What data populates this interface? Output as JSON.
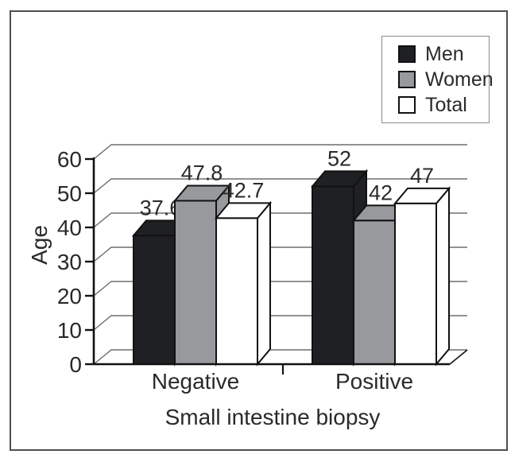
{
  "chart_data": {
    "type": "bar",
    "style": "3d-grouped",
    "title": "",
    "categories": [
      "Negative",
      "Positive"
    ],
    "series": [
      {
        "name": "Men",
        "color": "#1f2023",
        "values": [
          37.6,
          52
        ]
      },
      {
        "name": "Women",
        "color": "#97999c",
        "values": [
          47.8,
          42
        ]
      },
      {
        "name": "Total",
        "color": "#ffffff",
        "values": [
          42.7,
          47
        ]
      }
    ],
    "data_labels": [
      "37.6",
      "47.8",
      "42.7",
      "52",
      "42",
      "47"
    ],
    "xlabel": "Small intestine biopsy",
    "ylabel": "Age",
    "ylim": [
      0,
      60
    ],
    "ytick_step": 10,
    "grid": true,
    "legend": {
      "position": "top-right",
      "entries": [
        "Men",
        "Women",
        "Total"
      ]
    }
  },
  "colors": {
    "axis": "#111111",
    "bar_stroke": "#111111",
    "gridline": "#6e6e6e",
    "text": "#2a2a2a",
    "frame": "#4f4f4f",
    "legend_border": "#8c8c8c"
  }
}
